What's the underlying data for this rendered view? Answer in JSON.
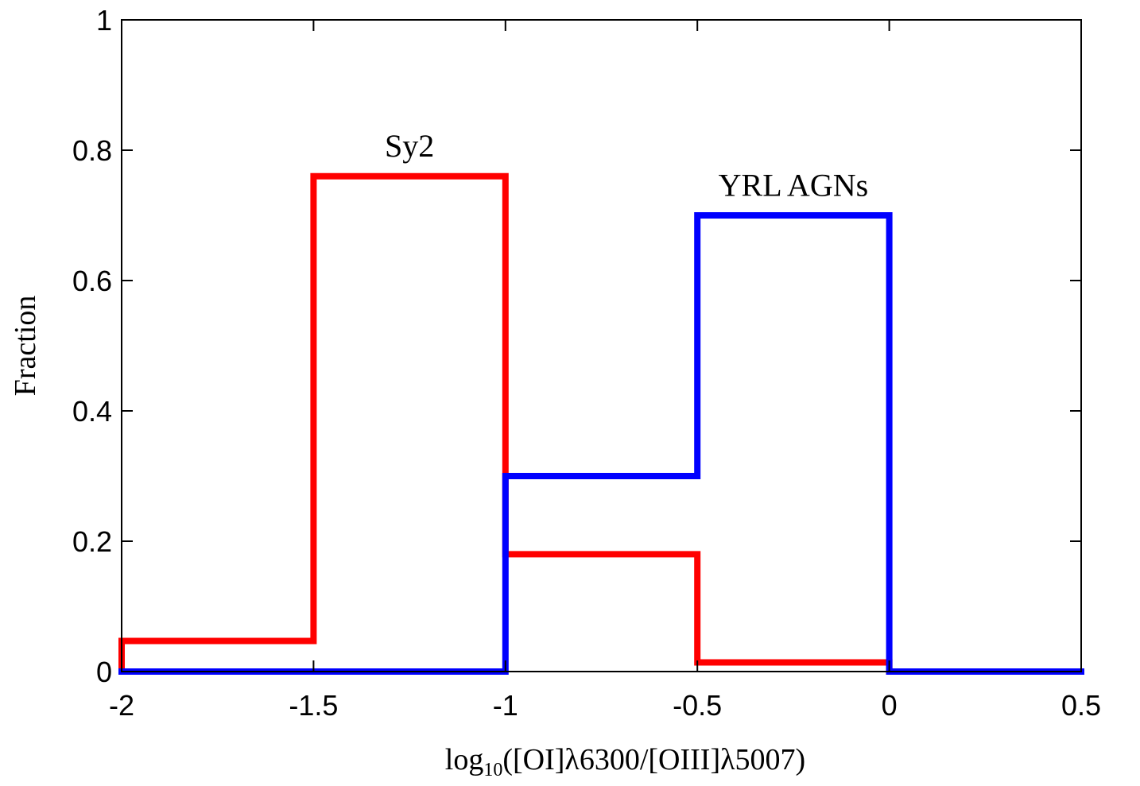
{
  "chart_data": {
    "type": "line",
    "step": "histogram",
    "title": "",
    "xlabel": {
      "prefix": "log",
      "sub": "10",
      "rest": "([OI]λ6300/[OIII]λ5007)"
    },
    "ylabel": "Fraction",
    "xlim": [
      -2,
      0.5
    ],
    "ylim": [
      0,
      1
    ],
    "xticks": [
      -2,
      -1.5,
      -1,
      -0.5,
      0,
      0.5
    ],
    "xtick_labels": [
      "-2",
      "-1.5",
      "-1",
      "-0.5",
      "0",
      "0.5"
    ],
    "yticks": [
      0,
      0.2,
      0.4,
      0.6,
      0.8,
      1
    ],
    "ytick_labels": [
      "0",
      "0.2",
      "0.4",
      "0.6",
      "0.8",
      "1"
    ],
    "bin_edges": [
      -2,
      -1.5,
      -1,
      -0.5,
      0,
      0.5
    ],
    "series": [
      {
        "name": "Sy2",
        "color": "#ff0000",
        "values": [
          0.047,
          0.76,
          0.18,
          0.014,
          0.0
        ]
      },
      {
        "name": "YRL AGNs",
        "color": "#0000ff",
        "values": [
          0.0,
          0.0,
          0.3,
          0.7,
          0.0
        ]
      }
    ],
    "annotations": [
      {
        "text": "Sy2",
        "x": -1.25,
        "y": 0.79
      },
      {
        "text": "YRL AGNs",
        "x": -0.25,
        "y": 0.73
      }
    ],
    "grid": false,
    "legend": "none"
  }
}
